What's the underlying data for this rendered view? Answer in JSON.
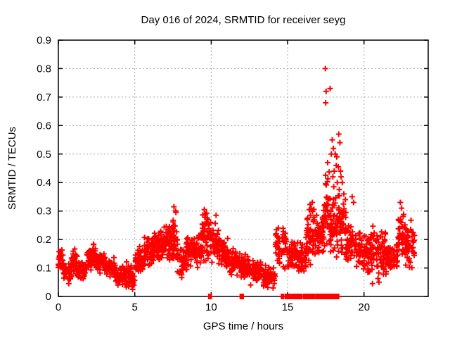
{
  "window": {
    "background": "#ffffff"
  },
  "chart_data": {
    "type": "scatter",
    "title": "Day 016 of 2024, SRMTID for receiver seyg",
    "xlabel": "GPS time / hours",
    "ylabel": "SRMTID / TECUs",
    "xlim": [
      0,
      24.2
    ],
    "ylim": [
      0,
      0.9
    ],
    "xticks": [
      0,
      5,
      10,
      15,
      20
    ],
    "yticks": [
      0,
      0.1,
      0.2,
      0.3,
      0.4,
      0.5,
      0.6,
      0.7,
      0.8,
      0.9
    ],
    "grid": {
      "style": "dashed",
      "color": "#a8a8a8"
    },
    "marker": {
      "shape": "plus",
      "color": "#ff0000",
      "size": 8
    },
    "series_name": "SRMTID",
    "legend": "none",
    "seed": 20240116,
    "bands": [
      [
        0.0,
        0.35,
        0.08,
        0.17,
        30
      ],
      [
        0.35,
        0.85,
        0.055,
        0.12,
        40
      ],
      [
        0.85,
        1.25,
        0.07,
        0.17,
        35
      ],
      [
        1.25,
        1.85,
        0.055,
        0.13,
        45
      ],
      [
        1.85,
        2.45,
        0.08,
        0.19,
        50
      ],
      [
        2.45,
        3.1,
        0.08,
        0.16,
        50
      ],
      [
        3.1,
        3.7,
        0.06,
        0.14,
        45
      ],
      [
        3.7,
        4.4,
        0.03,
        0.12,
        50
      ],
      [
        4.4,
        5.0,
        0.02,
        0.13,
        45
      ],
      [
        5.0,
        5.6,
        0.08,
        0.18,
        50
      ],
      [
        5.6,
        6.3,
        0.1,
        0.22,
        55
      ],
      [
        6.3,
        6.9,
        0.11,
        0.25,
        55
      ],
      [
        6.9,
        7.4,
        0.12,
        0.27,
        45
      ],
      [
        7.4,
        7.8,
        0.1,
        0.31,
        40
      ],
      [
        7.8,
        8.4,
        0.06,
        0.2,
        45
      ],
      [
        8.4,
        9.0,
        0.1,
        0.23,
        50
      ],
      [
        9.0,
        9.4,
        0.08,
        0.25,
        35
      ],
      [
        9.4,
        9.8,
        0.12,
        0.3,
        40
      ],
      [
        9.8,
        10.5,
        0.1,
        0.28,
        50
      ],
      [
        10.5,
        11.2,
        0.1,
        0.21,
        55
      ],
      [
        11.2,
        11.9,
        0.07,
        0.17,
        50
      ],
      [
        11.9,
        12.6,
        0.06,
        0.15,
        50
      ],
      [
        12.6,
        13.4,
        0.05,
        0.13,
        55
      ],
      [
        13.4,
        14.2,
        0.03,
        0.12,
        50
      ],
      [
        14.2,
        14.9,
        0.08,
        0.26,
        50
      ],
      [
        14.9,
        15.6,
        0.09,
        0.21,
        50
      ],
      [
        15.6,
        16.2,
        0.07,
        0.2,
        45
      ],
      [
        16.2,
        16.8,
        0.1,
        0.33,
        50
      ],
      [
        16.8,
        17.35,
        0.13,
        0.3,
        45
      ],
      [
        17.35,
        17.75,
        0.15,
        0.45,
        40
      ],
      [
        17.75,
        18.25,
        0.12,
        0.38,
        45
      ],
      [
        18.25,
        18.8,
        0.13,
        0.4,
        45
      ],
      [
        18.8,
        19.5,
        0.1,
        0.3,
        50
      ],
      [
        19.5,
        20.2,
        0.09,
        0.24,
        50
      ],
      [
        20.2,
        20.9,
        0.06,
        0.27,
        50
      ],
      [
        20.9,
        21.5,
        0.05,
        0.25,
        45
      ],
      [
        21.5,
        22.2,
        0.08,
        0.2,
        55
      ],
      [
        22.2,
        22.7,
        0.1,
        0.31,
        40
      ],
      [
        22.7,
        23.3,
        0.08,
        0.28,
        45
      ]
    ],
    "feature_points": [
      [
        17.47,
        0.8
      ],
      [
        17.52,
        0.72
      ],
      [
        17.78,
        0.73
      ],
      [
        17.49,
        0.68
      ],
      [
        18.35,
        0.57
      ],
      [
        18.42,
        0.54
      ],
      [
        17.92,
        0.55
      ],
      [
        18.0,
        0.52
      ],
      [
        17.86,
        0.5
      ],
      [
        18.12,
        0.5
      ],
      [
        18.22,
        0.49
      ],
      [
        17.62,
        0.47
      ],
      [
        18.18,
        0.46
      ],
      [
        18.32,
        0.455
      ],
      [
        18.05,
        0.44
      ],
      [
        18.46,
        0.44
      ],
      [
        17.96,
        0.42
      ],
      [
        18.5,
        0.42
      ],
      [
        18.25,
        0.4
      ],
      [
        18.58,
        0.4
      ],
      [
        18.02,
        0.385
      ],
      [
        18.38,
        0.375
      ],
      [
        18.68,
        0.36
      ],
      [
        18.78,
        0.34
      ],
      [
        19.22,
        0.35
      ],
      [
        19.32,
        0.33
      ],
      [
        16.62,
        0.33
      ],
      [
        16.55,
        0.31
      ],
      [
        22.38,
        0.33
      ],
      [
        22.46,
        0.31
      ],
      [
        9.55,
        0.305
      ],
      [
        7.56,
        0.315
      ],
      [
        10.32,
        0.285
      ],
      [
        4.86,
        0.025
      ],
      [
        4.94,
        0.04
      ],
      [
        14.05,
        0.03
      ],
      [
        14.12,
        0.045
      ],
      [
        12.58,
        0.04
      ],
      [
        20.55,
        0.045
      ],
      [
        20.98,
        0.05
      ],
      [
        0.68,
        0.045
      ]
    ],
    "zero_runs": [
      [
        9.85,
        10.0,
        3
      ],
      [
        11.9,
        12.1,
        4
      ],
      [
        14.6,
        14.75,
        3
      ],
      [
        14.85,
        15.15,
        7
      ],
      [
        15.2,
        15.5,
        12
      ],
      [
        15.55,
        15.95,
        16
      ],
      [
        16.05,
        16.5,
        18
      ],
      [
        16.55,
        16.75,
        9
      ],
      [
        16.85,
        17.25,
        16
      ],
      [
        17.3,
        17.45,
        7
      ],
      [
        17.5,
        18.0,
        20
      ],
      [
        18.05,
        18.35,
        13
      ]
    ]
  }
}
